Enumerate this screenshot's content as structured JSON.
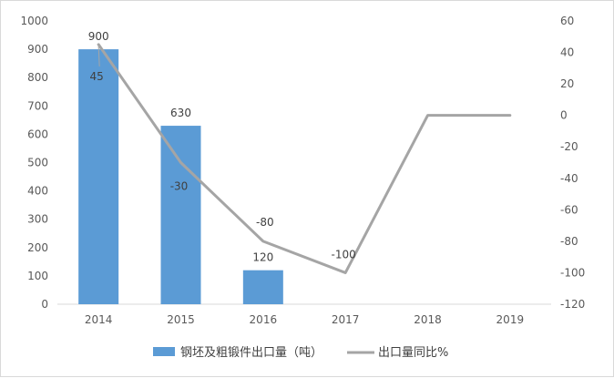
{
  "chart_data": {
    "type": "bar",
    "categories": [
      "2014",
      "2015",
      "2016",
      "2017",
      "2018",
      "2019"
    ],
    "series": [
      {
        "name": "钢坯及粗锻件出口量（吨）",
        "type": "bar",
        "axis": "left",
        "values": [
          900,
          630,
          120,
          0,
          0,
          0
        ],
        "data_labels": [
          "900",
          "630",
          "120",
          null,
          null,
          null
        ],
        "color": "#5b9bd5"
      },
      {
        "name": "出口量同比%",
        "type": "line",
        "axis": "right",
        "values": [
          45,
          -30,
          -80,
          -100,
          0,
          0
        ],
        "data_labels": [
          "45",
          "-30",
          "-80",
          "-100",
          null,
          null
        ],
        "color": "#a5a5a5"
      }
    ],
    "ylim_left": [
      0,
      1000
    ],
    "yticks_left": [
      "0",
      "100",
      "200",
      "300",
      "400",
      "500",
      "600",
      "700",
      "800",
      "900",
      "1000"
    ],
    "ylim_right": [
      -120,
      60
    ],
    "yticks_right": [
      "-120",
      "-100",
      "-80",
      "-60",
      "-40",
      "-20",
      "0",
      "20",
      "40",
      "60"
    ],
    "grid": false,
    "legend_position": "bottom",
    "title": "",
    "xlabel": "",
    "ylabel": ""
  }
}
